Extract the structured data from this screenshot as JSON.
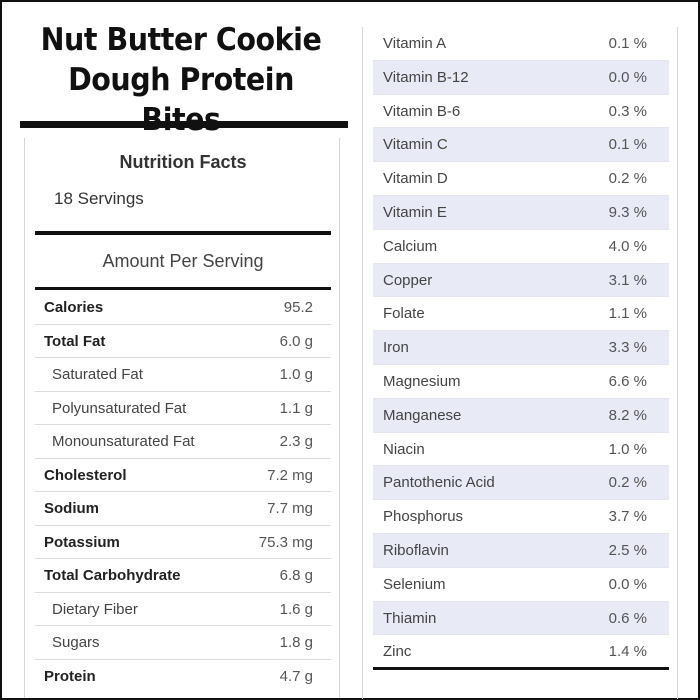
{
  "title": {
    "line1": "Nut Butter Cookie",
    "line2": "Dough Protein Bites"
  },
  "nutrition": {
    "heading": "Nutrition Facts",
    "servings": "18 Servings",
    "amount_per_serving": "Amount Per Serving",
    "rows": [
      {
        "label": "Calories",
        "value": "95.2"
      },
      {
        "label": "Total Fat",
        "value": "6.0 g"
      },
      {
        "label": "Saturated Fat",
        "value": "1.0 g"
      },
      {
        "label": "Polyunsaturated Fat",
        "value": "1.1 g"
      },
      {
        "label": "Monounsaturated Fat",
        "value": "2.3 g"
      },
      {
        "label": "Cholesterol",
        "value": "7.2 mg"
      },
      {
        "label": "Sodium",
        "value": "7.7 mg"
      },
      {
        "label": "Potassium",
        "value": "75.3 mg"
      },
      {
        "label": "Total Carbohydrate",
        "value": "6.8 g"
      },
      {
        "label": "Dietary Fiber",
        "value": "1.6 g"
      },
      {
        "label": "Sugars",
        "value": "1.8 g"
      },
      {
        "label": "Protein",
        "value": "4.7 g"
      }
    ]
  },
  "vitamins": {
    "rows": [
      {
        "label": "Vitamin A",
        "value": "0.1 %"
      },
      {
        "label": "Vitamin B-12",
        "value": "0.0 %"
      },
      {
        "label": "Vitamin B-6",
        "value": "0.3 %"
      },
      {
        "label": "Vitamin C",
        "value": "0.1 %"
      },
      {
        "label": "Vitamin D",
        "value": "0.2 %"
      },
      {
        "label": "Vitamin E",
        "value": "9.3 %"
      },
      {
        "label": "Calcium",
        "value": "4.0 %"
      },
      {
        "label": "Copper",
        "value": "3.1 %"
      },
      {
        "label": "Folate",
        "value": "1.1 %"
      },
      {
        "label": "Iron",
        "value": "3.3 %"
      },
      {
        "label": "Magnesium",
        "value": "6.6 %"
      },
      {
        "label": "Manganese",
        "value": "8.2 %"
      },
      {
        "label": "Niacin",
        "value": "1.0 %"
      },
      {
        "label": "Pantothenic Acid",
        "value": "0.2 %"
      },
      {
        "label": "Phosphorus",
        "value": "3.7 %"
      },
      {
        "label": "Riboflavin",
        "value": "2.5 %"
      },
      {
        "label": "Selenium",
        "value": "0.0 %"
      },
      {
        "label": "Thiamin",
        "value": "0.6 %"
      },
      {
        "label": "Zinc",
        "value": "1.4 %"
      }
    ]
  },
  "colors": {
    "stripe": "#e8eaf6",
    "rule": "#111111"
  }
}
